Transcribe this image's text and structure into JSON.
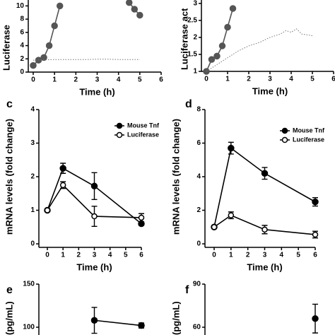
{
  "chart_data": [
    {
      "type": "line",
      "ylabel": "Luciferase",
      "xlabel": "Time (h)",
      "xlim": [
        0,
        6
      ],
      "xticks": [
        0,
        1,
        2,
        3,
        4,
        5,
        6
      ],
      "ylim": [
        0,
        11
      ],
      "yticks": [
        0,
        2,
        4,
        6,
        8,
        10
      ],
      "series": [
        {
          "color": "#555555",
          "marker": "filled",
          "style": "solid",
          "x": [
            0,
            0.25,
            0.5,
            0.75,
            1,
            1.25
          ],
          "values": [
            1,
            1.8,
            2.2,
            4,
            7,
            10
          ]
        },
        {
          "color": "#555555",
          "marker": "filled",
          "style": "solid",
          "x": [
            4.5,
            4.75,
            5
          ],
          "values": [
            10.5,
            9.5,
            8.6
          ]
        },
        {
          "color": "#777777",
          "marker": "none",
          "style": "dotted",
          "x": [
            0,
            0.5,
            1,
            1.5,
            2,
            2.5,
            3,
            3.5,
            4,
            4.5,
            5
          ],
          "values": [
            1.8,
            1.85,
            1.9,
            1.9,
            1.9,
            1.9,
            1.95,
            1.95,
            1.9,
            1.9,
            1.9
          ]
        }
      ]
    },
    {
      "type": "line",
      "ylabel": "Luciferase act",
      "xlabel": "Time (h)",
      "xlim": [
        0,
        6
      ],
      "xticks": [
        0,
        1,
        2,
        3,
        4,
        5,
        6
      ],
      "ylim": [
        1,
        3.1
      ],
      "yticks": [
        1,
        1.5,
        2,
        2.5,
        3
      ],
      "series": [
        {
          "color": "#555555",
          "marker": "filled",
          "style": "solid",
          "x": [
            0,
            0.25,
            0.5,
            0.75,
            1,
            1.25
          ],
          "values": [
            1,
            1.35,
            1.45,
            1.75,
            2.3,
            2.85
          ]
        },
        {
          "color": "#777777",
          "marker": "none",
          "style": "dotted",
          "x": [
            0,
            0.5,
            1,
            1.5,
            2,
            2.5,
            3,
            3.5,
            3.75,
            4,
            4.25,
            4.5,
            5
          ],
          "values": [
            1,
            1.2,
            1.4,
            1.6,
            1.75,
            1.85,
            2.0,
            2.1,
            2.2,
            2.15,
            2.25,
            2.1,
            2.05
          ]
        }
      ]
    },
    {
      "type": "line",
      "label": "c",
      "ylabel": "mRNA levels (fold change)",
      "xlabel": "Time (h)",
      "xlim": [
        0,
        6
      ],
      "xticks": [
        0,
        1,
        2,
        3,
        4,
        5,
        6
      ],
      "ylim": [
        0,
        4
      ],
      "yticks": [
        0,
        1,
        2,
        3,
        4
      ],
      "series": [
        {
          "name": "Mouse Tnf",
          "color": "#000000",
          "marker": "filled",
          "style": "solid",
          "x": [
            0,
            1,
            3,
            6
          ],
          "values": [
            1,
            2.25,
            1.72,
            0.6
          ],
          "errors": [
            0,
            0.15,
            0.4,
            0.05
          ]
        },
        {
          "name": "Luciferase",
          "color": "#000000",
          "marker": "open",
          "style": "solid",
          "x": [
            0,
            1,
            3,
            6
          ],
          "values": [
            1,
            1.75,
            0.82,
            0.78
          ],
          "errors": [
            0,
            0.1,
            0.3,
            0.12
          ]
        }
      ]
    },
    {
      "type": "line",
      "label": "d",
      "ylabel": "mRNA levels (fold change)",
      "xlabel": "Time (h)",
      "xlim": [
        0,
        6
      ],
      "xticks": [
        0,
        1,
        2,
        3,
        4,
        5,
        6
      ],
      "ylim": [
        0,
        8
      ],
      "yticks": [
        0,
        2,
        4,
        6,
        8
      ],
      "series": [
        {
          "name": "Mouse Tnf",
          "color": "#000000",
          "marker": "filled",
          "style": "solid",
          "x": [
            0,
            1,
            3,
            6
          ],
          "values": [
            1,
            5.7,
            4.2,
            2.5
          ],
          "errors": [
            0,
            0.35,
            0.35,
            0.25
          ]
        },
        {
          "name": "Luciferase",
          "color": "#000000",
          "marker": "open",
          "style": "solid",
          "x": [
            0,
            1,
            3,
            6
          ],
          "values": [
            1,
            1.7,
            0.85,
            0.55
          ],
          "errors": [
            0,
            0.2,
            0.25,
            0.2
          ]
        }
      ]
    },
    {
      "type": "line",
      "label": "e",
      "ylabel": "(pg/mL)",
      "xlim": [
        0,
        6
      ],
      "ylim": [
        100,
        150
      ],
      "yticks": [
        100,
        150
      ],
      "series": [
        {
          "color": "#000000",
          "marker": "filled",
          "style": "solid",
          "x": [
            3,
            6
          ],
          "values": [
            108,
            102
          ],
          "errors": [
            15,
            3
          ]
        }
      ]
    },
    {
      "type": "line",
      "label": "f",
      "ylabel": "(pg/mL)",
      "xlim": [
        0,
        6
      ],
      "ylim": [
        60,
        90
      ],
      "yticks": [
        60,
        90
      ],
      "series": [
        {
          "color": "#000000",
          "marker": "filled",
          "style": "solid",
          "x": [
            6
          ],
          "values": [
            66
          ],
          "errors": [
            10
          ]
        }
      ]
    }
  ]
}
